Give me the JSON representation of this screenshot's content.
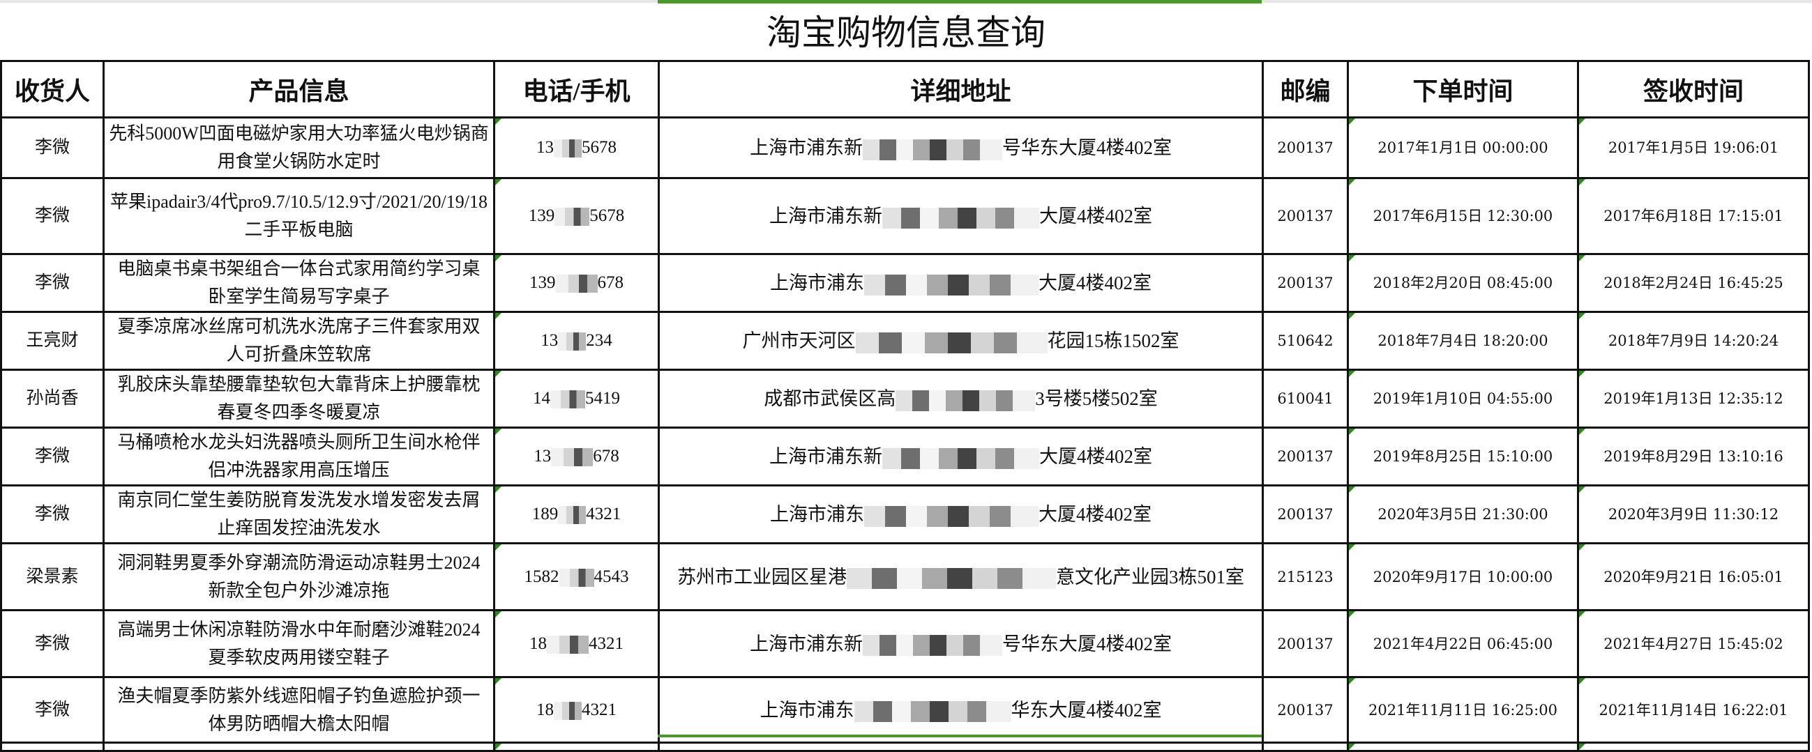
{
  "title": "淘宝购物信息查询",
  "accent_color": "#4a9a2a",
  "headers": [
    "收货人",
    "产品信息",
    "电话/手机",
    "详细地址",
    "邮编",
    "下单时间",
    "签收时间"
  ],
  "rows": [
    {
      "name": "李微",
      "product": "先科5000W凹面电磁炉家用大功率猛火电炒锅商用食堂火锅防水定时",
      "phone_start": "13",
      "phone_end": "5678",
      "addr_start": "上海市浦东新",
      "addr_end": "号华东大厦4楼402室",
      "zip": "200137",
      "order_time": "2017年1月1日  00:00:00",
      "sign_time": "2017年1月5日  19:06:01"
    },
    {
      "name": "李微",
      "product": "苹果ipadair3/4代pro9.7/10.5/12.9寸/2021/20/19/18二手平板电脑",
      "phone_start": "139",
      "phone_end": "5678",
      "addr_start": "上海市浦东新",
      "addr_end": "大厦4楼402室",
      "zip": "200137",
      "order_time": "2017年6月15日  12:30:00",
      "sign_time": "2017年6月18日  17:15:01"
    },
    {
      "name": "李微",
      "product": "电脑桌书桌书架组合一体台式家用简约学习桌卧室学生简易写字桌子",
      "phone_start": "139",
      "phone_end": "678",
      "addr_start": "上海市浦东",
      "addr_end": "大厦4楼402室",
      "zip": "200137",
      "order_time": "2018年2月20日  08:45:00",
      "sign_time": "2018年2月24日  16:45:25"
    },
    {
      "name": "王亮财",
      "product": "夏季凉席冰丝席可机洗水洗席子三件套家用双人可折叠床笠软席",
      "phone_start": "13",
      "phone_end": "234",
      "addr_start": "广州市天河区",
      "addr_end": "花园15栋1502室",
      "zip": "510642",
      "order_time": "2018年7月4日  18:20:00",
      "sign_time": "2018年7月9日  14:20:24"
    },
    {
      "name": "孙尚香",
      "product": "乳胶床头靠垫腰靠垫软包大靠背床上护腰靠枕春夏冬四季冬暖夏凉",
      "phone_start": "14",
      "phone_end": "5419",
      "addr_start": "成都市武侯区高",
      "addr_end": "3号楼5楼502室",
      "zip": "610041",
      "order_time": "2019年1月10日  04:55:00",
      "sign_time": "2019年1月13日  12:35:12"
    },
    {
      "name": "李微",
      "product": "马桶喷枪水龙头妇洗器喷头厕所卫生间水枪伴侣冲洗器家用高压增压",
      "phone_start": "13",
      "phone_end": "678",
      "addr_start": "上海市浦东新",
      "addr_end": "大厦4楼402室",
      "zip": "200137",
      "order_time": "2019年8月25日  15:10:00",
      "sign_time": "2019年8月29日  13:10:16"
    },
    {
      "name": "李微",
      "product": "南京同仁堂生姜防脱育发洗发水增发密发去屑止痒固发控油洗发水",
      "phone_start": "189",
      "phone_end": "4321",
      "addr_start": "上海市浦东",
      "addr_end": "大厦4楼402室",
      "zip": "200137",
      "order_time": "2020年3月5日  21:30:00",
      "sign_time": "2020年3月9日  11:30:12"
    },
    {
      "name": "梁景素",
      "product": "洞洞鞋男夏季外穿潮流防滑运动凉鞋男士2024新款全包户外沙滩凉拖",
      "phone_start": "1582",
      "phone_end": "4543",
      "addr_start": "苏州市工业园区星港",
      "addr_end": "意文化产业园3栋501室",
      "zip": "215123",
      "order_time": "2020年9月17日  10:00:00",
      "sign_time": "2020年9月21日  16:05:01"
    },
    {
      "name": "李微",
      "product": "高端男士休闲凉鞋防滑水中年耐磨沙滩鞋2024夏季软皮两用镂空鞋子",
      "phone_start": "18",
      "phone_end": "4321",
      "addr_start": "上海市浦东新",
      "addr_end": "号华东大厦4楼402室",
      "zip": "200137",
      "order_time": "2021年4月22日  06:45:00",
      "sign_time": "2021年4月27日  15:45:02"
    },
    {
      "name": "李微",
      "product": "渔夫帽夏季防紫外线遮阳帽子钓鱼遮脸护颈一体男防晒帽大檐太阳帽",
      "phone_start": "18",
      "phone_end": "4321",
      "addr_start": "上海市浦东",
      "addr_end": "华东大厦4楼402室",
      "zip": "200137",
      "order_time": "2021年11月11日  16:25:00",
      "sign_time": "2021年11月14日  16:22:01"
    }
  ]
}
